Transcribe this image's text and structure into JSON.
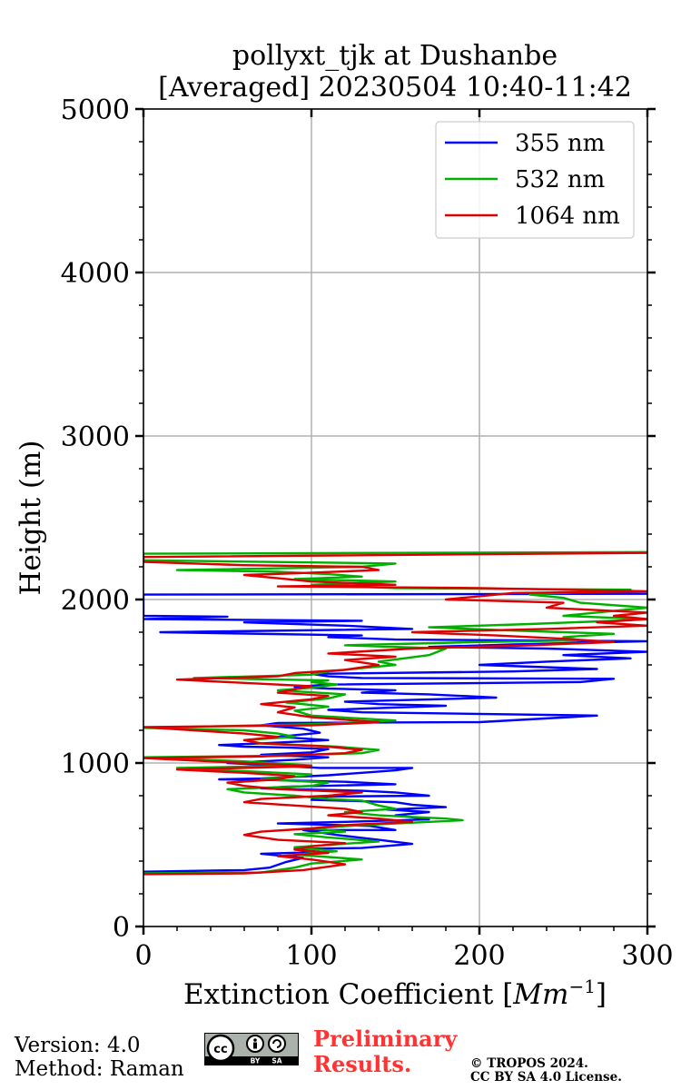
{
  "chart_data": {
    "type": "line",
    "title_line1": "pollyxt_tjk at Dushanbe",
    "title_line2": "[Averaged] 20230504 10:40-11:42",
    "xlabel": "Extinction Coefficient [",
    "xlabel_unit": "Mm",
    "xlabel_exp": "−1",
    "xlabel_close": "]",
    "ylabel": "Height (m)",
    "xlim": [
      0,
      300
    ],
    "ylim": [
      0,
      5000
    ],
    "xticks": [
      0,
      100,
      200,
      300
    ],
    "yticks": [
      0,
      1000,
      2000,
      3000,
      4000,
      5000
    ],
    "grid": true,
    "legend_position": "top-right",
    "series": [
      {
        "name": "355 nm",
        "color": "#0000ff",
        "points": [
          [
            0,
            335
          ],
          [
            60,
            345
          ],
          [
            75,
            360
          ],
          [
            85,
            395
          ],
          [
            95,
            420
          ],
          [
            70,
            445
          ],
          [
            105,
            455
          ],
          [
            90,
            475
          ],
          [
            130,
            480
          ],
          [
            160,
            505
          ],
          [
            140,
            530
          ],
          [
            115,
            560
          ],
          [
            95,
            590
          ],
          [
            150,
            590
          ],
          [
            135,
            615
          ],
          [
            80,
            630
          ],
          [
            120,
            640
          ],
          [
            170,
            655
          ],
          [
            150,
            680
          ],
          [
            170,
            700
          ],
          [
            145,
            715
          ],
          [
            180,
            730
          ],
          [
            160,
            745
          ],
          [
            150,
            760
          ],
          [
            100,
            775
          ],
          [
            110,
            795
          ],
          [
            170,
            800
          ],
          [
            150,
            820
          ],
          [
            130,
            830
          ],
          [
            70,
            845
          ],
          [
            85,
            855
          ],
          [
            150,
            870
          ],
          [
            120,
            885
          ],
          [
            80,
            895
          ],
          [
            45,
            900
          ],
          [
            70,
            905
          ],
          [
            110,
            925
          ],
          [
            130,
            940
          ],
          [
            150,
            955
          ],
          [
            160,
            970
          ],
          [
            105,
            970
          ],
          [
            50,
            1000
          ],
          [
            90,
            1020
          ],
          [
            110,
            1035
          ],
          [
            70,
            1050
          ],
          [
            100,
            1065
          ],
          [
            110,
            1085
          ],
          [
            85,
            1095
          ],
          [
            60,
            1100
          ],
          [
            45,
            1110
          ],
          [
            70,
            1120
          ],
          [
            110,
            1140
          ],
          [
            80,
            1160
          ],
          [
            105,
            1185
          ],
          [
            95,
            1210
          ],
          [
            70,
            1230
          ],
          [
            80,
            1245
          ],
          [
            200,
            1250
          ],
          [
            270,
            1290
          ],
          [
            130,
            1310
          ],
          [
            110,
            1325
          ],
          [
            180,
            1350
          ],
          [
            140,
            1360
          ],
          [
            120,
            1375
          ],
          [
            210,
            1400
          ],
          [
            170,
            1420
          ],
          [
            130,
            1430
          ],
          [
            150,
            1445
          ],
          [
            110,
            1455
          ],
          [
            90,
            1465
          ],
          [
            110,
            1480
          ],
          [
            260,
            1495
          ],
          [
            280,
            1515
          ],
          [
            130,
            1520
          ],
          [
            110,
            1530
          ],
          [
            100,
            1545
          ],
          [
            220,
            1560
          ],
          [
            270,
            1575
          ],
          [
            200,
            1600
          ],
          [
            240,
            1620
          ],
          [
            290,
            1640
          ],
          [
            250,
            1660
          ],
          [
            300,
            1680
          ],
          [
            240,
            1700
          ],
          [
            170,
            1710
          ],
          [
            220,
            1725
          ],
          [
            300,
            1745
          ],
          [
            150,
            1755
          ],
          [
            110,
            1770
          ],
          [
            130,
            1780
          ],
          [
            10,
            1800
          ],
          [
            160,
            1820
          ],
          [
            120,
            1840
          ],
          [
            60,
            1860
          ],
          [
            130,
            1870
          ],
          [
            0,
            1880
          ],
          [
            50,
            1895
          ],
          [
            0,
            1900
          ],
          [
            0,
            2030
          ],
          [
            300,
            2035
          ],
          [
            300,
            2040
          ]
        ]
      },
      {
        "name": "532 nm",
        "color": "#00b000",
        "points": [
          [
            0,
            325
          ],
          [
            70,
            330
          ],
          [
            90,
            360
          ],
          [
            100,
            385
          ],
          [
            130,
            410
          ],
          [
            110,
            425
          ],
          [
            90,
            440
          ],
          [
            115,
            460
          ],
          [
            100,
            475
          ],
          [
            90,
            485
          ],
          [
            140,
            520
          ],
          [
            110,
            545
          ],
          [
            90,
            565
          ],
          [
            120,
            580
          ],
          [
            100,
            600
          ],
          [
            130,
            620
          ],
          [
            190,
            650
          ],
          [
            180,
            660
          ],
          [
            140,
            680
          ],
          [
            120,
            700
          ],
          [
            150,
            720
          ],
          [
            140,
            740
          ],
          [
            130,
            770
          ],
          [
            110,
            780
          ],
          [
            90,
            800
          ],
          [
            60,
            820
          ],
          [
            50,
            840
          ],
          [
            100,
            860
          ],
          [
            110,
            880
          ],
          [
            70,
            900
          ],
          [
            90,
            915
          ],
          [
            100,
            930
          ],
          [
            60,
            950
          ],
          [
            20,
            970
          ],
          [
            100,
            985
          ],
          [
            60,
            1010
          ],
          [
            0,
            1035
          ],
          [
            80,
            1045
          ],
          [
            130,
            1060
          ],
          [
            140,
            1080
          ],
          [
            115,
            1100
          ],
          [
            70,
            1120
          ],
          [
            60,
            1140
          ],
          [
            90,
            1160
          ],
          [
            80,
            1180
          ],
          [
            60,
            1200
          ],
          [
            0,
            1215
          ],
          [
            110,
            1240
          ],
          [
            150,
            1260
          ],
          [
            100,
            1290
          ],
          [
            90,
            1320
          ],
          [
            110,
            1345
          ],
          [
            85,
            1370
          ],
          [
            110,
            1395
          ],
          [
            120,
            1420
          ],
          [
            80,
            1445
          ],
          [
            100,
            1460
          ],
          [
            115,
            1480
          ],
          [
            100,
            1495
          ],
          [
            110,
            1505
          ],
          [
            30,
            1520
          ],
          [
            100,
            1540
          ],
          [
            110,
            1560
          ],
          [
            130,
            1580
          ],
          [
            150,
            1600
          ],
          [
            140,
            1620
          ],
          [
            170,
            1660
          ],
          [
            180,
            1700
          ],
          [
            120,
            1720
          ],
          [
            200,
            1740
          ],
          [
            260,
            1750
          ],
          [
            250,
            1770
          ],
          [
            280,
            1790
          ],
          [
            220,
            1810
          ],
          [
            170,
            1830
          ],
          [
            230,
            1850
          ],
          [
            280,
            1870
          ],
          [
            300,
            1880
          ],
          [
            250,
            1900
          ],
          [
            280,
            1930
          ],
          [
            300,
            1950
          ],
          [
            260,
            1980
          ],
          [
            250,
            2010
          ],
          [
            230,
            2030
          ],
          [
            270,
            2050
          ],
          [
            290,
            2060
          ],
          [
            150,
            2070
          ],
          [
            100,
            2090
          ],
          [
            150,
            2110
          ],
          [
            90,
            2125
          ],
          [
            130,
            2140
          ],
          [
            110,
            2155
          ],
          [
            80,
            2170
          ],
          [
            20,
            2180
          ],
          [
            130,
            2200
          ],
          [
            150,
            2220
          ],
          [
            0,
            2240
          ],
          [
            0,
            2280
          ],
          [
            300,
            2290
          ]
        ]
      },
      {
        "name": "1064 nm",
        "color": "#dd0000",
        "points": [
          [
            0,
            320
          ],
          [
            60,
            325
          ],
          [
            95,
            345
          ],
          [
            120,
            380
          ],
          [
            100,
            410
          ],
          [
            80,
            430
          ],
          [
            110,
            450
          ],
          [
            90,
            470
          ],
          [
            100,
            490
          ],
          [
            120,
            510
          ],
          [
            80,
            530
          ],
          [
            60,
            560
          ],
          [
            70,
            580
          ],
          [
            100,
            600
          ],
          [
            120,
            620
          ],
          [
            160,
            640
          ],
          [
            140,
            660
          ],
          [
            110,
            680
          ],
          [
            130,
            700
          ],
          [
            120,
            720
          ],
          [
            90,
            740
          ],
          [
            60,
            760
          ],
          [
            70,
            780
          ],
          [
            110,
            800
          ],
          [
            130,
            820
          ],
          [
            80,
            840
          ],
          [
            60,
            860
          ],
          [
            50,
            880
          ],
          [
            80,
            900
          ],
          [
            90,
            920
          ],
          [
            60,
            940
          ],
          [
            20,
            960
          ],
          [
            100,
            980
          ],
          [
            60,
            1000
          ],
          [
            0,
            1030
          ],
          [
            70,
            1040
          ],
          [
            120,
            1060
          ],
          [
            130,
            1080
          ],
          [
            110,
            1100
          ],
          [
            70,
            1120
          ],
          [
            60,
            1140
          ],
          [
            80,
            1160
          ],
          [
            60,
            1180
          ],
          [
            30,
            1200
          ],
          [
            0,
            1220
          ],
          [
            100,
            1230
          ],
          [
            140,
            1250
          ],
          [
            100,
            1280
          ],
          [
            80,
            1310
          ],
          [
            90,
            1340
          ],
          [
            70,
            1360
          ],
          [
            100,
            1390
          ],
          [
            110,
            1410
          ],
          [
            80,
            1430
          ],
          [
            90,
            1450
          ],
          [
            100,
            1470
          ],
          [
            60,
            1490
          ],
          [
            20,
            1510
          ],
          [
            80,
            1530
          ],
          [
            90,
            1550
          ],
          [
            120,
            1570
          ],
          [
            140,
            1600
          ],
          [
            120,
            1630
          ],
          [
            150,
            1650
          ],
          [
            110,
            1670
          ],
          [
            160,
            1700
          ],
          [
            230,
            1720
          ],
          [
            280,
            1740
          ],
          [
            250,
            1760
          ],
          [
            210,
            1780
          ],
          [
            160,
            1800
          ],
          [
            240,
            1820
          ],
          [
            300,
            1840
          ],
          [
            270,
            1860
          ],
          [
            300,
            1880
          ],
          [
            280,
            1900
          ],
          [
            300,
            1920
          ],
          [
            240,
            1950
          ],
          [
            250,
            1980
          ],
          [
            180,
            2000
          ],
          [
            200,
            2020
          ],
          [
            220,
            2040
          ],
          [
            300,
            2050
          ],
          [
            250,
            2060
          ],
          [
            200,
            2070
          ],
          [
            80,
            2080
          ],
          [
            150,
            2090
          ],
          [
            100,
            2110
          ],
          [
            80,
            2130
          ],
          [
            60,
            2150
          ],
          [
            90,
            2160
          ],
          [
            140,
            2180
          ],
          [
            130,
            2200
          ],
          [
            60,
            2210
          ],
          [
            0,
            2230
          ],
          [
            0,
            2260
          ],
          [
            300,
            2285
          ],
          [
            300,
            2290
          ]
        ]
      }
    ]
  },
  "footer": {
    "version_line1": "Version: 4.0",
    "version_line2": "Method: Raman",
    "preliminary_line1": "Preliminary",
    "preliminary_line2": "Results.",
    "copyright_line1": "© TROPOS 2024.",
    "copyright_line2": "CC BY SA 4.0 License."
  },
  "badge": {
    "cc": "cc",
    "by": "BY",
    "sa": "SA"
  }
}
